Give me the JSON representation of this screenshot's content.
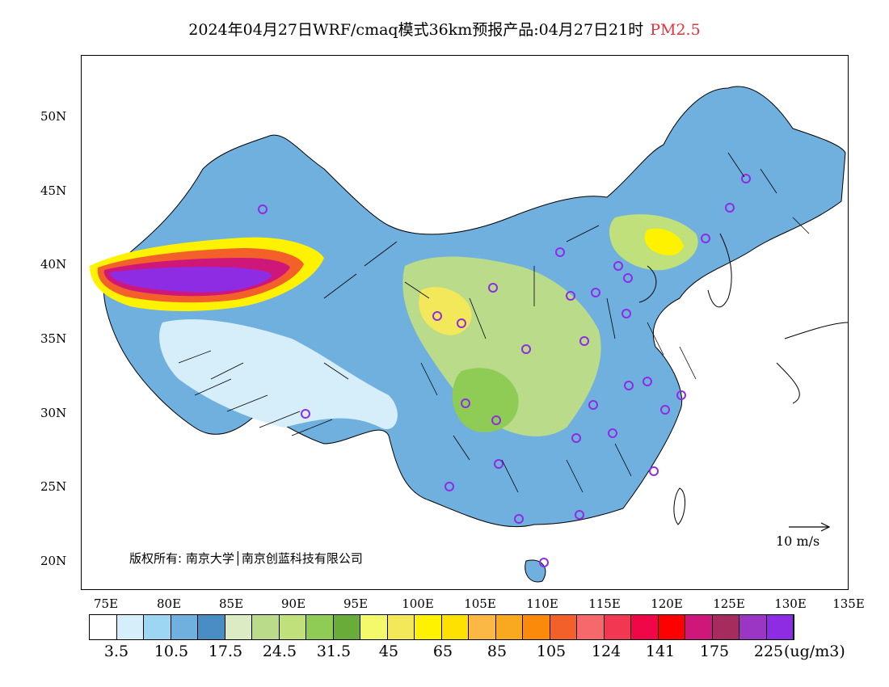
{
  "title": {
    "main": "2024年04月27日WRF/cmaq模式36km预报产品:04月27日21时",
    "pollutant": "PM2.5"
  },
  "axes": {
    "lat_labels": [
      "50N",
      "45N",
      "40N",
      "35N",
      "30N",
      "25N",
      "20N"
    ],
    "lon_labels": [
      "75E",
      "80E",
      "85E",
      "90E",
      "95E",
      "100E",
      "105E",
      "110E",
      "115E",
      "120E",
      "125E",
      "130E",
      "135E"
    ]
  },
  "copyright": "版权所有: 南京大学│南京创蓝科技有限公司",
  "wind_reference": "10 m/s",
  "legend": {
    "unit": "(ug/m3)",
    "labels": [
      "3.5",
      "10.5",
      "17.5",
      "24.5",
      "31.5",
      "45",
      "65",
      "85",
      "105",
      "124",
      "141",
      "175",
      "225"
    ],
    "colors": [
      "#ffffff",
      "#d6eefa",
      "#9dd6f2",
      "#6fb0de",
      "#4a8cc4",
      "#dcebc4",
      "#b9db8a",
      "#bfe07a",
      "#8fcc55",
      "#6aac3a",
      "#f4f96c",
      "#f2e85a",
      "#fff200",
      "#ffe100",
      "#fbb844",
      "#f9a91f",
      "#fb8a0b",
      "#f36029",
      "#f6686b",
      "#f23752",
      "#ef0748",
      "#fc0100",
      "#cf1779",
      "#a52c5c",
      "#9a35c4",
      "#8e2ce3"
    ]
  }
}
